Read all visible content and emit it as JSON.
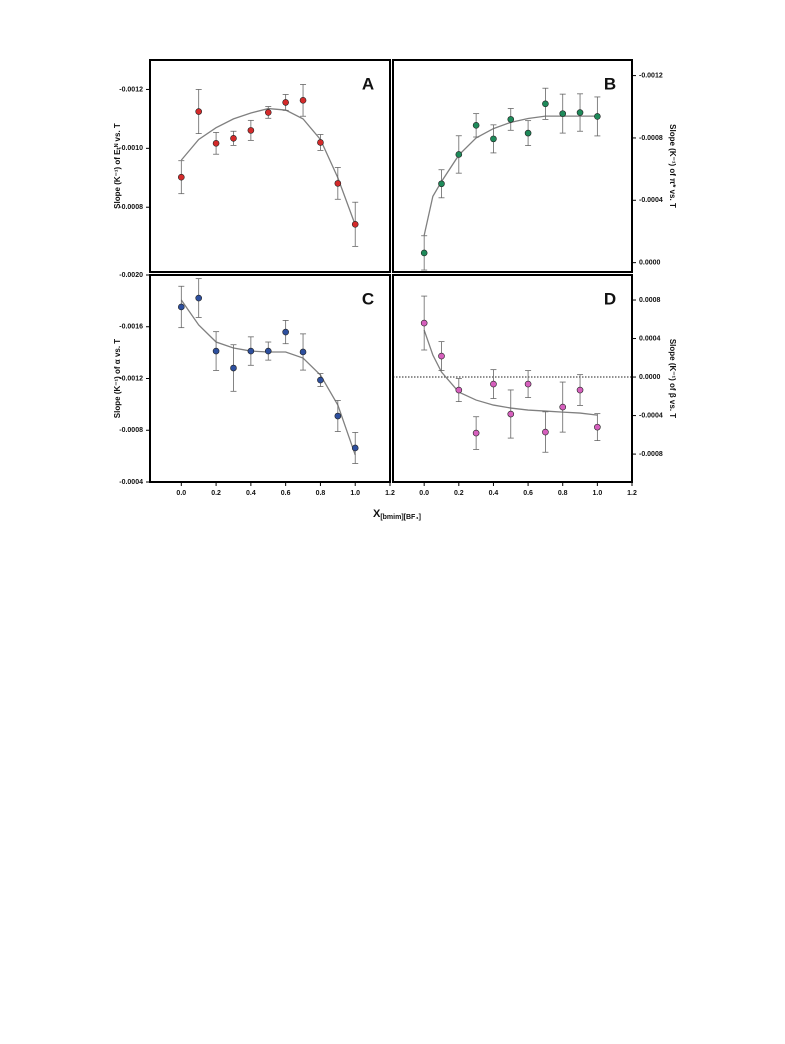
{
  "chart_data": [
    {
      "type": "scatter",
      "label": "A",
      "ylabel": "Slope (K⁻¹) of Eₜᴺ vs. T",
      "yaxis_side": "left",
      "color": "#d42a2a",
      "fit_color": "#808080",
      "xlim": [
        -0.18,
        1.2
      ],
      "ylim": [
        -0.00058,
        -0.0013
      ],
      "yticks": [
        -0.0012,
        {
          "value": -0.001,
          "label": "-0.0010"
        },
        -0.0008
      ],
      "x": [
        0,
        0.1,
        0.2,
        0.3,
        0.4,
        0.5,
        0.6,
        0.7,
        0.8,
        0.9,
        1
      ],
      "values": [
        -0.000902,
        -0.001125,
        -0.001017,
        -0.001034,
        -0.001061,
        -0.001122,
        -0.001156,
        -0.001163,
        -0.00102,
        -0.000881,
        -0.000742
      ],
      "errors": [
        5.6e-05,
        7.5e-05,
        3.7e-05,
        2.4e-05,
        3.4e-05,
        2e-05,
        2.7e-05,
        5.4e-05,
        2.7e-05,
        5.4e-05,
        7.5e-05
      ],
      "fit": {
        "x": [
          0,
          0.1,
          0.2,
          0.3,
          0.4,
          0.5,
          0.6,
          0.7,
          0.8,
          0.9,
          1
        ],
        "values": [
          -0.00096,
          -0.00103,
          -0.00107,
          -0.0011,
          -0.00112,
          -0.001135,
          -0.00113,
          -0.0011,
          -0.00103,
          -0.0009,
          -0.00074
        ]
      }
    },
    {
      "type": "scatter",
      "label": "B",
      "ylabel": "Slope (K⁻¹) of π* vs. T",
      "yaxis_side": "right",
      "color": "#1e8a5a",
      "fit_color": "#808080",
      "xlim": [
        -0.18,
        1.2
      ],
      "ylim": [
        6e-05,
        -0.0013
      ],
      "yticks": [
        -0.0012,
        -0.0008,
        -0.0004,
        {
          "value": 0,
          "label": "0.0000"
        }
      ],
      "x": [
        0,
        0.1,
        0.2,
        0.3,
        0.4,
        0.5,
        0.6,
        0.7,
        0.8,
        0.9,
        1
      ],
      "values": [
        -6.25e-05,
        -0.000506,
        -0.000694,
        -0.000881,
        -0.000794,
        -0.000919,
        -0.000831,
        -0.001019,
        -0.000956,
        -0.000963,
        -0.000938
      ],
      "errors": [
        0.00011,
        9e-05,
        0.00012,
        7.5e-05,
        9e-05,
        7e-05,
        8e-05,
        0.0001,
        0.000125,
        0.00012,
        0.000125
      ],
      "fit": {
        "x": [
          0,
          0.05,
          0.1,
          0.2,
          0.3,
          0.4,
          0.5,
          0.6,
          0.7,
          0.8,
          0.9,
          1
        ],
        "values": [
          -0.000175,
          -0.000425,
          -0.00052,
          -0.00069,
          -0.0008,
          -0.00086,
          -0.0009,
          -0.000925,
          -0.00094,
          -0.00094,
          -0.00094,
          -0.00094
        ]
      }
    },
    {
      "type": "scatter",
      "label": "C",
      "ylabel": "Slope (K⁻¹) of α vs. T",
      "yaxis_side": "left",
      "color": "#2d4f9e",
      "fit_color": "#808080",
      "xlim": [
        -0.18,
        1.2
      ],
      "ylim": [
        -0.0004,
        -0.002
      ],
      "yticks": [
        {
          "value": -0.002,
          "label": "-0.0020"
        },
        -0.0016,
        -0.0012,
        -0.0008,
        -0.0004
      ],
      "xticks": [
        {
          "value": 0,
          "label": "0.0"
        },
        0.2,
        0.4,
        0.6,
        0.8,
        {
          "value": 1,
          "label": "1.0"
        },
        1.2
      ],
      "x": [
        0,
        0.1,
        0.2,
        0.3,
        0.4,
        0.5,
        0.6,
        0.7,
        0.8,
        0.9,
        1
      ],
      "values": [
        -0.001753,
        -0.001822,
        -0.001412,
        -0.001281,
        -0.001412,
        -0.001412,
        -0.001559,
        -0.001405,
        -0.001188,
        -0.00091,
        -0.000663
      ],
      "errors": [
        0.00016,
        0.00015,
        0.00015,
        0.00018,
        0.00011,
        7e-05,
        9e-05,
        0.00014,
        5e-05,
        0.00012,
        0.00012
      ],
      "fit": {
        "x": [
          0,
          0.1,
          0.2,
          0.3,
          0.4,
          0.5,
          0.6,
          0.7,
          0.8,
          0.9,
          1
        ],
        "values": [
          -0.001807,
          -0.001614,
          -0.001482,
          -0.001436,
          -0.001412,
          -0.001405,
          -0.001405,
          -0.001358,
          -0.001227,
          -0.000995,
          -0.000609
        ]
      }
    },
    {
      "type": "scatter",
      "label": "D",
      "ylabel": "Slope (K⁻¹) of β vs. T",
      "yaxis_side": "right",
      "color": "#d65fbd",
      "fit_color": "#808080",
      "hline": 0,
      "xlim": [
        -0.18,
        1.2
      ],
      "ylim": [
        -0.00109,
        0.00106
      ],
      "yticks": [
        0.0008,
        0.0004,
        {
          "value": 0,
          "label": "0.0000"
        },
        -0.0004,
        -0.0008
      ],
      "xticks": [
        {
          "value": 0,
          "label": "0.0"
        },
        0.2,
        0.4,
        0.6,
        0.8,
        {
          "value": 1,
          "label": "1.0"
        },
        1.2
      ],
      "x": [
        0,
        0.1,
        0.2,
        0.3,
        0.4,
        0.5,
        0.6,
        0.7,
        0.8,
        0.9,
        1
      ],
      "values": [
        0.000561,
        0.000218,
        -0.000135,
        -0.000582,
        -7.3e-05,
        -0.000384,
        -7.3e-05,
        -0.000571,
        -0.000312,
        -0.000135,
        -0.00052
      ],
      "errors": [
        0.00028,
        0.00015,
        0.00012,
        0.00017,
        0.00015,
        0.00025,
        0.00014,
        0.00021,
        0.00026,
        0.00016,
        0.00014
      ],
      "fit": {
        "x": [
          0,
          0.05,
          0.1,
          0.2,
          0.3,
          0.4,
          0.5,
          0.6,
          0.7,
          0.8,
          0.9,
          1
        ],
        "values": [
          0.000488,
          0.000229,
          5.2e-05,
          -0.000156,
          -0.000239,
          -0.000291,
          -0.000322,
          -0.000343,
          -0.000353,
          -0.000364,
          -0.000374,
          -0.000395
        ]
      }
    }
  ],
  "figure_xlabel": {
    "main": "X",
    "sub": "[bmim][BF₄]"
  }
}
